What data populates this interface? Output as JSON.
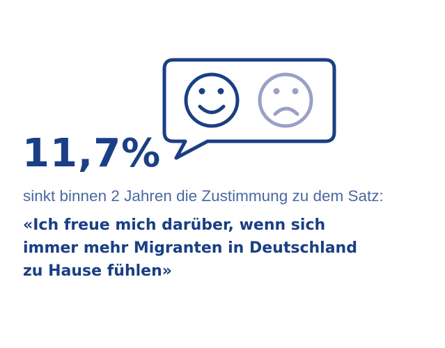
{
  "headline": {
    "value": "11,7%"
  },
  "subline": "sinkt binnen 2 Jahren die Zustimmung zu dem Satz:",
  "quote": {
    "lines": [
      "«Ich freue mich darüber, wenn sich",
      "immer mehr Migranten in Deutschland",
      "zu Hause fühlen»"
    ]
  },
  "icons": {
    "bubble": "speech-bubble-icon",
    "left_face": "smiley-happy-icon",
    "right_face": "smiley-sad-icon"
  },
  "colors": {
    "primary": "#1a3f84",
    "muted": "#9aa0c7",
    "subtext": "#4a68a3"
  }
}
